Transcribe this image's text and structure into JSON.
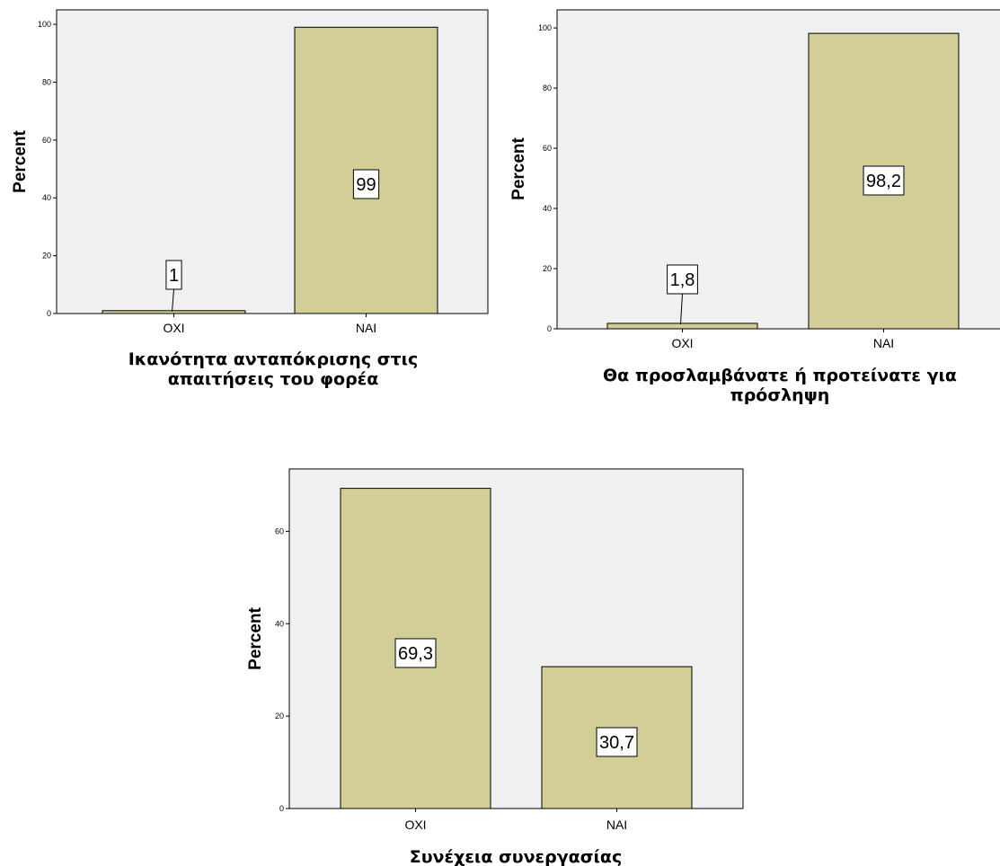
{
  "chart_data": [
    {
      "type": "bar",
      "categories": [
        "ΟΧΙ",
        "ΝΑΙ"
      ],
      "values": [
        1,
        99
      ],
      "data_labels": [
        "1",
        "99"
      ],
      "xlabel_lines": [
        "Ικανότητα ανταπόκρισης στις",
        "απαιτήσεις του φορέα"
      ],
      "ylabel": "Percent",
      "ylim": [
        0,
        105
      ],
      "yticks": [
        0,
        20,
        40,
        60,
        80,
        100
      ],
      "grid": false,
      "colors": {
        "bar": "#d3ce97",
        "plot_bg": "#f0f0f0"
      }
    },
    {
      "type": "bar",
      "categories": [
        "ΟΧΙ",
        "ΝΑΙ"
      ],
      "values": [
        1.8,
        98.2
      ],
      "data_labels": [
        "1,8",
        "98,2"
      ],
      "xlabel_lines": [
        "Θα προσλαμβάνατε ή προτείνατε για",
        "πρόσληψη"
      ],
      "ylabel": "Percent",
      "ylim": [
        0,
        106
      ],
      "yticks": [
        0,
        20,
        40,
        60,
        80,
        100
      ],
      "grid": false,
      "colors": {
        "bar": "#d3ce97",
        "plot_bg": "#f0f0f0"
      }
    },
    {
      "type": "bar",
      "categories": [
        "ΟΧΙ",
        "ΝΑΙ"
      ],
      "values": [
        69.3,
        30.7
      ],
      "data_labels": [
        "69,3",
        "30,7"
      ],
      "xlabel_lines": [
        "Συνέχεια συνεργασίας"
      ],
      "ylabel": "Percent",
      "ylim": [
        0,
        73.5
      ],
      "yticks": [
        0,
        20,
        40,
        60
      ],
      "grid": false,
      "colors": {
        "bar": "#d3ce97",
        "plot_bg": "#f0f0f0"
      }
    }
  ]
}
